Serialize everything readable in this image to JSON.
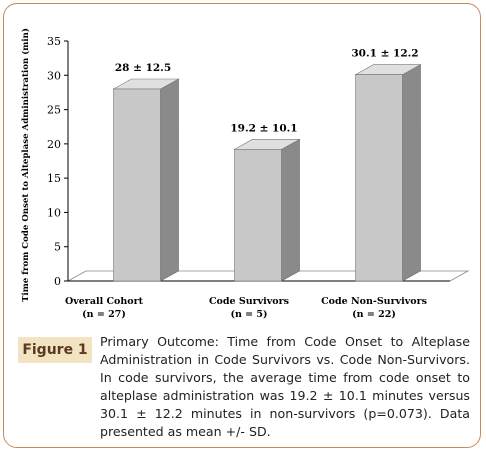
{
  "chart_data": {
    "type": "bar",
    "categories": [
      {
        "line1": "Overall Cohort",
        "line2": "(n = 27)"
      },
      {
        "line1": "Code Survivors",
        "line2": "(n = 5)"
      },
      {
        "line1": "Code Non-Survivors",
        "line2": "(n = 22)"
      }
    ],
    "values": [
      28,
      19.2,
      30.1
    ],
    "data_labels": [
      "28 ± 12.5",
      "19.2 ± 10.1",
      "30.1 ± 12.2"
    ],
    "ylabel": "Time from Code Onset to Alteplase Administration (min)",
    "ylim": [
      0,
      35
    ],
    "yticks": [
      0,
      5,
      10,
      15,
      20,
      25,
      30,
      35
    ],
    "grid": false,
    "bar_color": "#c8c8c8"
  },
  "caption": {
    "badge": "Figure 1",
    "text": "Primary Outcome: Time from Code Onset to Alteplase Administration in Code Survivors vs. Code Non-Survivors. In code survivors, the average time from code onset to alteplase administration was 19.2 ± 10.1 minutes versus 30.1 ± 12.2 minutes in non-survivors (p=0.073). Data presented as mean +/- SD."
  },
  "colors": {
    "frame_border": "#c98a5a",
    "badge_bg": "#f2e3c2",
    "badge_text": "#5b3a1f"
  }
}
